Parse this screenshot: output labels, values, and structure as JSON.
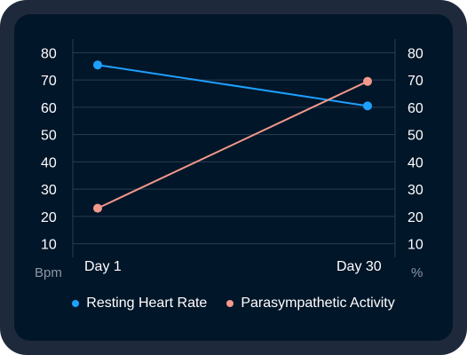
{
  "chart_data": {
    "type": "line",
    "title": "",
    "categories": [
      "Day 1",
      "Day 30"
    ],
    "series": [
      {
        "name": "Resting Heart Rate",
        "axis": "left",
        "values": [
          75.5,
          60.5
        ],
        "color": "#1ea0ff"
      },
      {
        "name": "Parasympathetic Activity",
        "axis": "right",
        "values": [
          23,
          69.5
        ],
        "color": "#f4998b"
      }
    ],
    "y_left": {
      "label": "Bpm",
      "ticks": [
        80,
        70,
        60,
        50,
        40,
        30,
        20,
        10
      ],
      "ylim": [
        5,
        85
      ]
    },
    "y_right": {
      "label": "%",
      "ticks": [
        80,
        70,
        60,
        50,
        40,
        30,
        20,
        10
      ],
      "ylim": [
        5,
        85
      ]
    },
    "grid": true,
    "legend_position": "bottom"
  },
  "colors": {
    "frame": "#1e2a3c",
    "panel": "#021629",
    "grid": "#2a3d52"
  }
}
